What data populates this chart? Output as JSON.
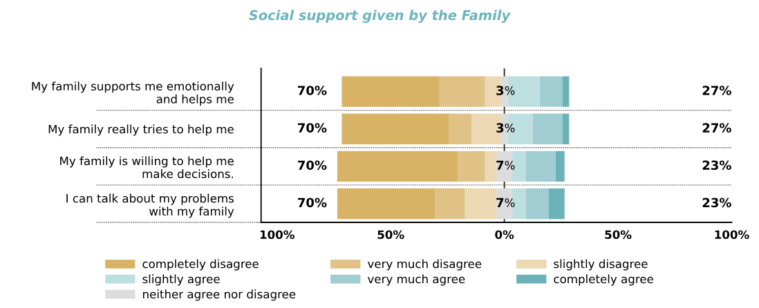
{
  "chart_data": {
    "type": "bar",
    "orientation": "horizontal",
    "title": "Social support given by the Family",
    "categories": [
      "My family supports me emotionally\nand helps me",
      "My family really tries to help me",
      "My family is willing to help me\nmake decisions.",
      "I can talk about my problems\nwith my family"
    ],
    "series": [
      {
        "name": "neither agree nor disagree",
        "color": "#dcdcdc",
        "values": [
          3,
          3,
          7,
          7
        ],
        "base": [
          -1.5,
          -1.5,
          -3.5,
          -3.5
        ],
        "value_labels": [
          "3%",
          "3%",
          "7%",
          "7%"
        ]
      },
      {
        "name": "slightly disagree",
        "color": "#ecd8b2",
        "values": [
          -7,
          -13,
          -5,
          -14
        ],
        "base": [
          -1.5,
          -1.5,
          -3.5,
          -3.5
        ]
      },
      {
        "name": "very much disagree",
        "color": "#e0c286",
        "values": [
          -20,
          -10,
          -12,
          -13
        ],
        "base": [
          -8.5,
          -14.5,
          -8.5,
          -17.5
        ]
      },
      {
        "name": "completely disagree",
        "color": "#d8b366",
        "values": [
          -43,
          -47,
          -53,
          -43
        ],
        "base": [
          -28.5,
          -24.5,
          -20.5,
          -30.5
        ]
      },
      {
        "name": "slightly agree",
        "color": "#bedfe0",
        "values": [
          14,
          11,
          6,
          6
        ],
        "base": [
          1.5,
          1.5,
          3.5,
          3.5
        ]
      },
      {
        "name": "very much agree",
        "color": "#9fcdd1",
        "values": [
          10,
          13,
          13,
          10
        ],
        "base": [
          15.5,
          12.5,
          9.5,
          9.5
        ]
      },
      {
        "name": "completely agree",
        "color": "#6bb2b8",
        "values": [
          3,
          3,
          4,
          7
        ],
        "base": [
          25.5,
          25.5,
          22.5,
          19.5
        ]
      }
    ],
    "xlim": [
      -107,
      100
    ],
    "xticks": [
      {
        "value": -100,
        "label": "100%"
      },
      {
        "value": -50,
        "label": "50%"
      },
      {
        "value": 0,
        "label": "0%"
      },
      {
        "value": 50,
        "label": "50%"
      },
      {
        "value": 100,
        "label": "100%"
      }
    ],
    "ref_lines": [
      {
        "axis": "x",
        "value": 0,
        "color": "#222222"
      }
    ],
    "annotations": [
      "70%",
      "70%",
      "70%",
      "70%",
      "27%",
      "27%",
      "23%",
      "23%"
    ],
    "grid": "y",
    "legend": "bottom"
  }
}
